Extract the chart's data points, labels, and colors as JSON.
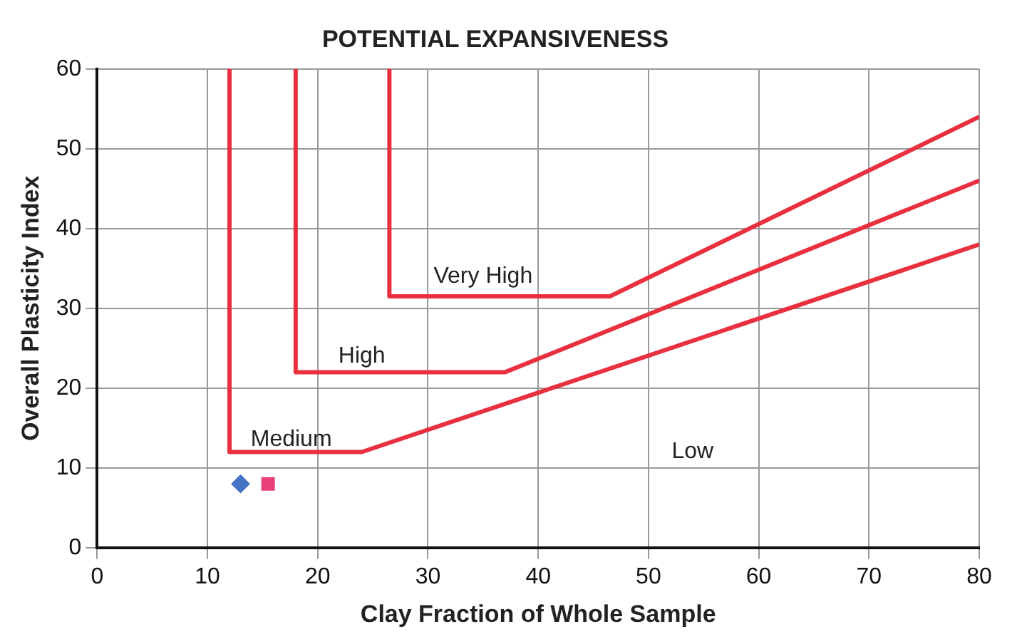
{
  "chart_data": {
    "type": "line",
    "title": "POTENTIAL EXPANSIVENESS",
    "xlabel": "Clay Fraction of Whole Sample",
    "ylabel": "Overall Plasticity Index",
    "xlim": [
      0,
      80
    ],
    "xticks": [
      0,
      10,
      20,
      30,
      40,
      50,
      60,
      70,
      80
    ],
    "ylim": [
      0,
      60
    ],
    "yticks": [
      0,
      10,
      20,
      30,
      40,
      50,
      60
    ],
    "grid": true,
    "legend": false,
    "series": [
      {
        "color": "#e8303f",
        "marker": "none",
        "x": [
          12,
          12,
          24,
          80
        ],
        "values": [
          60,
          12,
          12,
          38
        ]
      },
      {
        "color": "#e8303f",
        "marker": "none",
        "x": [
          18,
          18,
          37,
          80
        ],
        "values": [
          60,
          22,
          22,
          46
        ]
      },
      {
        "color": "#e8303f",
        "marker": "none",
        "x": [
          26.5,
          26.5,
          46.5,
          80
        ],
        "values": [
          60,
          31.5,
          31.5,
          54
        ]
      },
      {
        "type": "scatter",
        "color": "#4472c4",
        "marker": "diamond",
        "x": [
          13
        ],
        "values": [
          8
        ]
      },
      {
        "type": "scatter",
        "color": "#e83e7a",
        "marker": "square",
        "x": [
          15.5
        ],
        "values": [
          8
        ]
      }
    ],
    "annotations": [
      "Very High",
      "High",
      "Medium",
      "Low"
    ]
  }
}
